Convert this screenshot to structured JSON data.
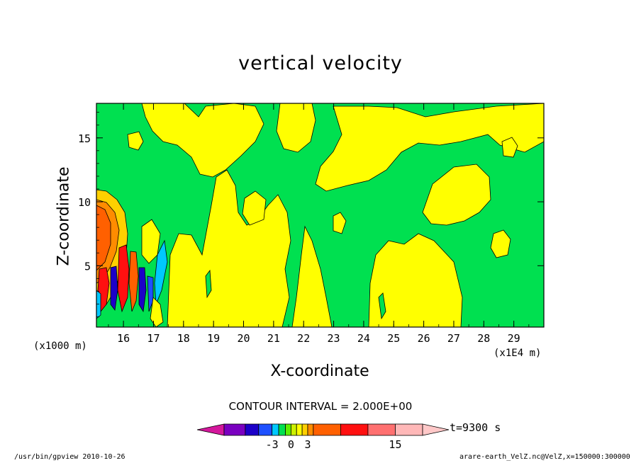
{
  "chart_data": {
    "type": "heatmap",
    "title": "vertical velocity",
    "xlabel": "X-coordinate",
    "ylabel": "Z-coordinate",
    "x_unit_left": "(x1000 m)",
    "x_unit_right": "(x1E4 m)",
    "xlim": [
      15.1,
      30.0
    ],
    "ylim": [
      0.2,
      17.7
    ],
    "x_ticks": [
      "16",
      "17",
      "18",
      "19",
      "20",
      "21",
      "22",
      "23",
      "24",
      "25",
      "26",
      "27",
      "28",
      "29"
    ],
    "y_ticks": [
      "5",
      "10",
      "15"
    ],
    "contour_interval_label": "CONTOUR INTERVAL = 2.000E+00",
    "time_label": "t=9300 s",
    "colorbar": {
      "levels": [
        -9,
        -7,
        -5,
        -3,
        -2,
        -1,
        0,
        1,
        2,
        3,
        4,
        7,
        10,
        13,
        16
      ],
      "colors": [
        "#d4179c",
        "#7a00c0",
        "#1c00c8",
        "#1e50ff",
        "#00c8ff",
        "#00e050",
        "#5cf000",
        "#ccf000",
        "#ffff00",
        "#ffd000",
        "#ff8c00",
        "#ff6000",
        "#ff1010",
        "#ff7070",
        "#ffb8b8",
        "#ffc8c8"
      ],
      "tick_labels": [
        "-3",
        "0",
        "3",
        "15"
      ]
    },
    "regions_note": "background near-zero field with alternating updraft/downdraft cells near x=15-17"
  },
  "footer": {
    "left": "/usr/bin/gpview   2010-10-26",
    "right": "arare-earth_VelZ.nc@VelZ,x=150000:300000"
  }
}
